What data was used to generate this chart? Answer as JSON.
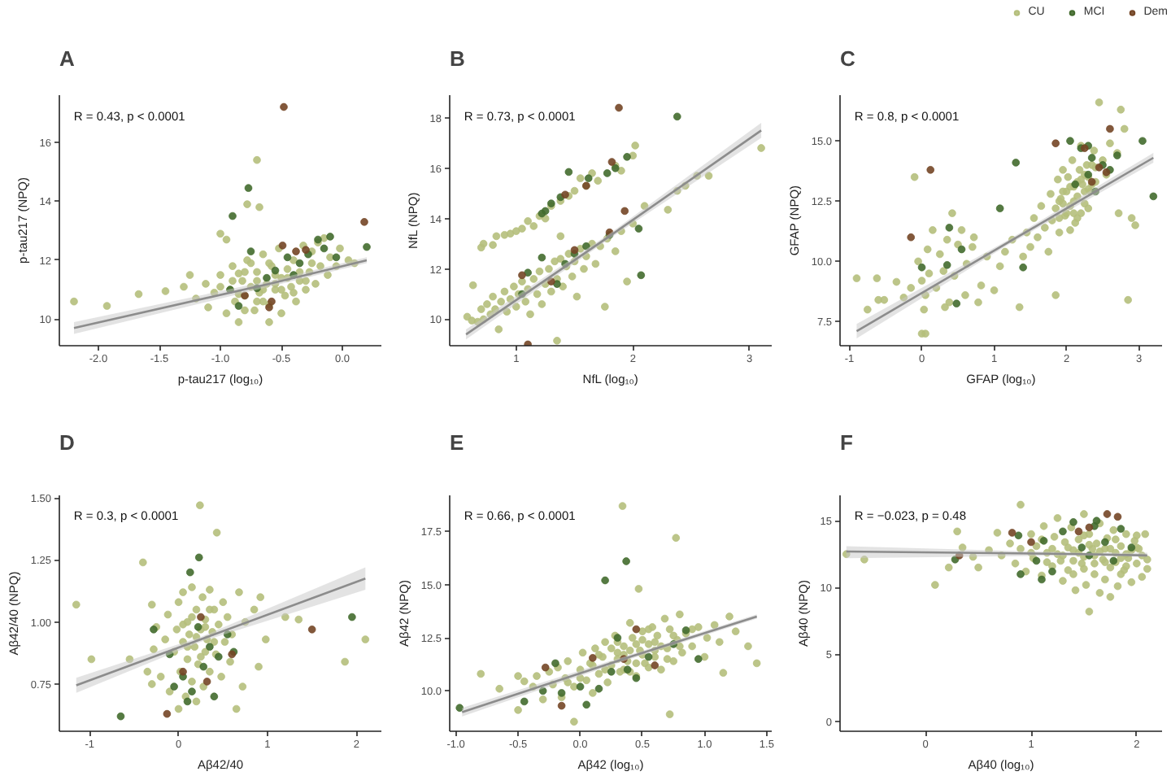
{
  "chart_data": [
    {
      "type": "scatter",
      "title": "A",
      "xlabel": "p-tau217 (log₁₀)",
      "ylabel": "p-tau217 (NPQ)",
      "annotations": [
        "R = 0.43, p < 0.0001"
      ],
      "xlim": [
        -2.32,
        0.32
      ],
      "ylim": [
        9.1,
        17.6
      ],
      "xticks": [
        {
          "value": -2,
          "label": "-2.0"
        },
        -1.5,
        {
          "value": -1,
          "label": "-1.0"
        },
        -0.5,
        {
          "value": 0,
          "label": "0.0"
        }
      ],
      "yticks": [
        10,
        12,
        14,
        16
      ],
      "grid": false,
      "marker": "circle",
      "series": [
        {
          "color": "#b5bf7c",
          "x": [
            -2.2,
            -1.93,
            -1.67,
            -1.45,
            -1.3,
            -1.25,
            -1.2,
            -1.12,
            -1.1,
            -1.05,
            -1.0,
            -1.0,
            -0.95,
            -0.92,
            -0.9,
            -0.88,
            -0.85,
            -0.82,
            -0.8,
            -0.78,
            -0.78,
            -0.75,
            -0.72,
            -0.7,
            -0.68,
            -0.7,
            -0.68,
            -0.65,
            -0.62,
            -0.6,
            -0.58,
            -0.55,
            -0.52,
            -0.5,
            -0.5,
            -0.47,
            -0.45,
            -0.42,
            -0.4,
            -0.38,
            -0.35,
            -0.32,
            -0.3,
            -0.27,
            -0.25,
            -0.22,
            -0.2,
            -0.18,
            -0.15,
            -0.12,
            -0.1,
            -0.05,
            -0.02,
            0.05,
            0.1,
            -0.6,
            -0.95,
            -0.85,
            -0.75,
            -0.65,
            -0.55,
            -0.8,
            -0.9,
            -0.8,
            -0.7,
            -0.65,
            -0.6,
            -0.55,
            -0.5,
            -0.45,
            -0.4,
            -0.35,
            -0.3,
            -0.25,
            -0.7,
            -1.0,
            -0.85
          ],
          "values": [
            10.6,
            10.45,
            10.85,
            10.95,
            11.1,
            11.5,
            10.7,
            11.2,
            10.4,
            10.9,
            11.5,
            12.9,
            10.2,
            11.0,
            11.8,
            10.6,
            9.9,
            11.3,
            10.8,
            13.9,
            12.0,
            11.1,
            10.3,
            15.4,
            13.8,
            11.6,
            10.9,
            12.2,
            11.2,
            10.5,
            11.8,
            11.0,
            12.4,
            11.4,
            10.2,
            10.8,
            11.7,
            11.1,
            12.0,
            10.6,
            11.3,
            12.5,
            11.0,
            11.6,
            12.3,
            11.2,
            12.6,
            11.8,
            12.75,
            11.5,
            12.1,
            11.8,
            12.4,
            12.0,
            11.9,
            9.9,
            12.7,
            11.55,
            11.9,
            10.6,
            11.5,
            10.3,
            11.3,
            11.6,
            11.3,
            11.0,
            11.9,
            11.2,
            11.0,
            11.4,
            10.9,
            11.6,
            11.3,
            11.9,
            10.6,
            11.1,
            10.85
          ]
        },
        {
          "color": "#436b2e",
          "x": [
            -0.77,
            -0.9,
            -0.92,
            -0.85,
            -0.75,
            -0.62,
            -0.45,
            -0.35,
            -0.28,
            -0.2,
            -0.15,
            -0.1,
            -0.05,
            0.2,
            -0.55,
            -0.7,
            -0.4
          ],
          "values": [
            14.45,
            13.5,
            11.0,
            10.45,
            12.3,
            11.4,
            12.1,
            11.9,
            12.2,
            12.7,
            12.4,
            12.8,
            12.1,
            12.45,
            11.65,
            11.05,
            11.5
          ]
        },
        {
          "color": "#744626",
          "x": [
            -0.48,
            0.18,
            -0.49,
            -0.38,
            -0.8,
            -0.6,
            -0.3,
            -0.58
          ],
          "values": [
            17.2,
            13.3,
            12.5,
            12.3,
            10.8,
            10.4,
            12.35,
            10.6
          ]
        },
        {
          "type": "line",
          "color": "#8c8c8c",
          "marker": "none",
          "x": [
            -2.2,
            -0.6,
            0.2
          ],
          "values": [
            9.7,
            11.2,
            12.0
          ],
          "lower": [
            9.5,
            11.1,
            11.9
          ],
          "upper": [
            9.9,
            11.3,
            12.1
          ]
        }
      ]
    },
    {
      "type": "scatter",
      "title": "B",
      "xlabel": "NfL (log₁₀)",
      "ylabel": "NfL (NPQ)",
      "annotations": [
        "R = 0.73, p < 0.0001"
      ],
      "xlim": [
        0.43,
        3.19
      ],
      "ylim": [
        8.95,
        18.9
      ],
      "xticks": [
        1,
        2,
        3
      ],
      "yticks": [
        10,
        12,
        14,
        16,
        18
      ],
      "grid": false,
      "marker": "circle",
      "series": [
        {
          "color": "#b5bf7c",
          "x": [
            0.58,
            0.62,
            0.63,
            0.67,
            0.7,
            0.72,
            0.75,
            0.78,
            0.8,
            0.82,
            0.85,
            0.87,
            0.9,
            0.92,
            0.95,
            0.98,
            1.0,
            1.02,
            1.05,
            1.08,
            1.1,
            1.12,
            1.15,
            1.18,
            1.2,
            1.22,
            1.25,
            1.28,
            1.3,
            1.33,
            1.35,
            1.35,
            1.38,
            1.4,
            1.43,
            1.45,
            1.48,
            1.5,
            1.52,
            1.55,
            1.58,
            1.6,
            1.65,
            1.68,
            1.72,
            1.76,
            1.78,
            1.85,
            1.9,
            1.95,
            2.0,
            2.1,
            2.3,
            2.38,
            2.45,
            2.55,
            2.65,
            3.1,
            0.7,
            0.72,
            0.8,
            0.83,
            0.9,
            0.95,
            1.0,
            1.05,
            1.1,
            1.15,
            1.2,
            1.25,
            1.3,
            1.38,
            1.45,
            1.5,
            1.55,
            1.6,
            1.65,
            1.7,
            1.85,
            1.9,
            2.0,
            2.02,
            1.38
          ],
          "values": [
            10.1,
            9.95,
            11.35,
            9.9,
            10.4,
            10.0,
            10.6,
            10.2,
            10.9,
            10.4,
            9.6,
            10.7,
            11.1,
            10.3,
            10.8,
            11.3,
            10.5,
            11.0,
            11.5,
            10.7,
            11.2,
            10.2,
            11.6,
            11.0,
            11.9,
            10.6,
            11.4,
            12.0,
            11.1,
            12.3,
            9.15,
            11.6,
            12.4,
            11.3,
            12.1,
            12.6,
            11.7,
            12.3,
            10.9,
            12.8,
            12.0,
            12.5,
            13.0,
            12.2,
            12.9,
            10.5,
            13.2,
            12.7,
            13.5,
            11.5,
            13.8,
            14.5,
            14.35,
            15.1,
            15.3,
            15.7,
            15.7,
            16.8,
            12.85,
            13.0,
            12.95,
            13.3,
            13.35,
            13.4,
            13.5,
            13.6,
            13.9,
            13.7,
            14.1,
            14.0,
            14.5,
            14.7,
            14.9,
            15.1,
            15.6,
            15.3,
            15.8,
            15.5,
            16.1,
            15.9,
            16.5,
            16.9,
            13.3
          ]
        },
        {
          "color": "#436b2e",
          "x": [
            2.38,
            2.07,
            2.05,
            1.45,
            1.62,
            1.78,
            1.85,
            1.95,
            1.38,
            1.25,
            1.22,
            1.3,
            1.22,
            1.1,
            1.35,
            1.5,
            1.6,
            1.8,
            1.05,
            1.42
          ],
          "values": [
            18.05,
            11.75,
            13.6,
            15.85,
            15.6,
            15.8,
            16.0,
            16.45,
            14.85,
            14.3,
            14.2,
            14.6,
            12.45,
            11.85,
            11.4,
            12.6,
            12.9,
            13.35,
            11.0,
            12.2
          ]
        },
        {
          "color": "#744626",
          "x": [
            1.88,
            1.1,
            1.93,
            1.82,
            1.6,
            1.42,
            1.05,
            1.8,
            1.5,
            1.3
          ],
          "values": [
            18.4,
            9.0,
            14.3,
            16.25,
            15.3,
            14.95,
            11.75,
            13.45,
            12.75,
            11.5
          ]
        },
        {
          "type": "line",
          "color": "#8c8c8c",
          "marker": "none",
          "x": [
            0.57,
            1.8,
            3.1
          ],
          "values": [
            9.4,
            13.3,
            17.5
          ],
          "lower": [
            9.2,
            13.2,
            17.2
          ],
          "upper": [
            9.6,
            13.4,
            17.8
          ]
        }
      ]
    },
    {
      "type": "scatter",
      "title": "C",
      "xlabel": "GFAP (log₁₀)",
      "ylabel": "GFAP (NPQ)",
      "annotations": [
        "R = 0.8, p < 0.0001"
      ],
      "xlim": [
        -1.13,
        3.32
      ],
      "ylim": [
        6.5,
        16.9
      ],
      "xticks": [
        -1,
        0,
        1,
        2,
        3
      ],
      "yticks": [
        7.5,
        {
          "value": 10,
          "label": "10.0"
        },
        12.5,
        {
          "value": 15,
          "label": "15.0"
        }
      ],
      "grid": false,
      "marker": "circle",
      "legend": "top right",
      "series": [
        {
          "name": "CU",
          "color": "#b5bf7c",
          "x": [
            -0.9,
            -0.75,
            -0.62,
            -0.6,
            -0.52,
            -0.35,
            -0.25,
            -0.15,
            -0.1,
            -0.05,
            0.0,
            0.0,
            0.03,
            0.05,
            0.05,
            0.08,
            0.1,
            0.15,
            0.2,
            0.25,
            0.3,
            0.32,
            0.35,
            0.38,
            0.42,
            0.45,
            0.5,
            0.55,
            0.6,
            0.62,
            0.7,
            0.72,
            0.78,
            0.82,
            0.9,
            1.0,
            1.08,
            1.15,
            1.25,
            1.35,
            1.4,
            1.45,
            1.5,
            1.55,
            1.6,
            1.65,
            1.7,
            1.75,
            1.78,
            1.8,
            1.85,
            1.85,
            1.88,
            1.9,
            1.92,
            1.95,
            1.98,
            2.0,
            2.02,
            2.05,
            2.08,
            2.1,
            2.12,
            2.15,
            2.18,
            2.2,
            2.22,
            2.25,
            2.28,
            2.3,
            2.33,
            2.38,
            2.4,
            2.45,
            2.5,
            2.55,
            2.6,
            2.7,
            2.75,
            2.8,
            2.85,
            2.9,
            2.95,
            2.72,
            2.0,
            2.1,
            2.2,
            2.3,
            1.95,
            2.15,
            2.25,
            2.35,
            2.05,
            1.9,
            1.95,
            2.05,
            2.1,
            2.2,
            2.25,
            2.3,
            2.4,
            2.15,
            1.9,
            2.35
          ],
          "values": [
            9.3,
            8.0,
            9.3,
            8.4,
            8.4,
            9.15,
            8.5,
            8.9,
            13.5,
            10.0,
            7.0,
            9.2,
            8.0,
            7.0,
            8.6,
            10.5,
            9.5,
            11.3,
            8.9,
            10.3,
            9.6,
            8.1,
            10.9,
            8.3,
            12.0,
            9.4,
            10.7,
            11.3,
            8.6,
            9.9,
            10.6,
            11.0,
            8.3,
            9.0,
            10.2,
            8.8,
            9.8,
            10.4,
            10.9,
            8.1,
            10.2,
            11.2,
            10.6,
            11.8,
            11.0,
            12.3,
            11.4,
            10.4,
            12.8,
            11.7,
            8.6,
            12.2,
            13.4,
            11.2,
            12.6,
            13.8,
            11.9,
            12.9,
            13.5,
            12.3,
            14.2,
            13.1,
            11.6,
            12.7,
            13.8,
            14.8,
            13.2,
            12.4,
            14.0,
            13.5,
            12.9,
            14.6,
            13.9,
            16.6,
            14.2,
            13.6,
            14.9,
            14.5,
            16.3,
            15.5,
            8.4,
            11.8,
            11.5,
            12.0,
            12.0,
            12.5,
            12.0,
            13.0,
            12.4,
            13.3,
            13.6,
            13.2,
            11.3,
            11.8,
            12.9,
            13.1,
            12.0,
            13.4,
            12.9,
            12.2,
            13.3,
            11.8,
            12.5,
            14.0
          ]
        },
        {
          "name": "MCI",
          "color": "#436b2e",
          "x": [
            0.0,
            0.38,
            0.35,
            0.55,
            0.48,
            1.08,
            1.3,
            1.4,
            2.05,
            2.2,
            2.3,
            2.35,
            2.4,
            2.5,
            2.6,
            2.7,
            3.05,
            3.2,
            2.3,
            2.12
          ],
          "values": [
            9.75,
            11.4,
            9.85,
            10.5,
            8.25,
            12.2,
            14.1,
            9.75,
            15.0,
            14.7,
            13.6,
            14.3,
            12.9,
            14.0,
            13.8,
            14.4,
            15.0,
            12.7,
            14.8,
            13.2
          ]
        },
        {
          "name": "Dem",
          "color": "#744626",
          "x": [
            0.12,
            -0.15,
            1.85,
            2.6,
            2.25,
            2.55,
            2.45,
            2.35
          ],
          "values": [
            13.8,
            11.0,
            14.9,
            15.5,
            14.7,
            13.7,
            13.9,
            13.3
          ]
        },
        {
          "type": "line",
          "color": "#8c8c8c",
          "marker": "none",
          "x": [
            -0.9,
            1.2,
            3.2
          ],
          "values": [
            7.1,
            10.8,
            14.3
          ],
          "lower": [
            6.8,
            10.7,
            14.1
          ],
          "upper": [
            7.4,
            10.9,
            14.5
          ]
        }
      ]
    },
    {
      "type": "scatter",
      "title": "D",
      "xlabel": "Aβ42/40",
      "ylabel": "Aβ42/40 (NPQ)",
      "annotations": [
        "R = 0.3, p < 0.0001"
      ],
      "xlim": [
        -1.34,
        2.28
      ],
      "ylim": [
        0.56,
        1.51
      ],
      "xticks": [
        -1,
        0,
        1,
        2
      ],
      "yticks": [
        0.75,
        {
          "value": 1,
          "label": "1.00"
        },
        1.25,
        {
          "value": 1.5,
          "label": "1.50"
        }
      ],
      "grid": false,
      "marker": "circle",
      "series": [
        {
          "color": "#b5bf7c",
          "x": [
            -1.15,
            -0.98,
            -0.55,
            -0.4,
            -0.3,
            -0.28,
            -0.25,
            -0.2,
            -0.15,
            -0.12,
            -0.1,
            -0.05,
            -0.02,
            0.0,
            0.0,
            0.02,
            0.05,
            0.05,
            0.08,
            0.1,
            0.1,
            0.12,
            0.15,
            0.15,
            0.18,
            0.2,
            0.2,
            0.22,
            0.24,
            0.25,
            0.27,
            0.28,
            0.3,
            0.3,
            0.32,
            0.35,
            0.35,
            0.38,
            0.4,
            0.42,
            0.43,
            0.45,
            0.48,
            0.5,
            0.52,
            0.55,
            0.58,
            0.6,
            0.65,
            0.68,
            0.72,
            0.75,
            0.85,
            0.9,
            0.92,
            0.98,
            1.2,
            1.35,
            1.87,
            2.1,
            -0.3,
            -0.35,
            0.2,
            0.3,
            0.1,
            0.4,
            0.25,
            0.15,
            0.35,
            0.05
          ],
          "values": [
            1.07,
            0.85,
            0.85,
            1.24,
            1.07,
            0.89,
            0.98,
            0.78,
            0.93,
            1.03,
            0.72,
            0.88,
            0.97,
            0.65,
            1.08,
            0.8,
            0.92,
            1.12,
            0.7,
            0.85,
            1.0,
            0.95,
            0.76,
            1.14,
            0.9,
            1.05,
            0.68,
            0.83,
            1.47,
            0.97,
            1.1,
            0.74,
            0.88,
            1.01,
            0.93,
            1.13,
            0.8,
            0.96,
            1.05,
            0.87,
            1.36,
            0.99,
            0.78,
            1.08,
            0.92,
            1.02,
            0.84,
            0.95,
            0.65,
            1.12,
            0.74,
            1.0,
            1.05,
            0.82,
            1.1,
            0.93,
            1.02,
            1.01,
            0.84,
            0.93,
            0.75,
            0.8,
            0.94,
            0.98,
            0.9,
            0.92,
            0.86,
            1.02,
            1.05,
            0.99
          ]
        },
        {
          "color": "#436b2e",
          "x": [
            -0.65,
            0.23,
            0.13,
            1.95,
            -0.28,
            -0.1,
            -0.05,
            0.05,
            0.1,
            0.22,
            0.28,
            0.35,
            0.4,
            0.45,
            0.55,
            0.62,
            0.15
          ],
          "values": [
            0.62,
            1.26,
            1.2,
            1.02,
            0.97,
            0.87,
            0.74,
            0.78,
            0.68,
            0.98,
            0.82,
            0.9,
            0.7,
            0.86,
            0.95,
            0.88,
            0.72
          ]
        },
        {
          "color": "#744626",
          "x": [
            -0.13,
            1.5,
            0.25,
            0.05,
            0.6,
            0.32
          ],
          "values": [
            0.63,
            0.97,
            1.02,
            0.8,
            0.87,
            0.76
          ]
        },
        {
          "type": "line",
          "color": "#8c8c8c",
          "marker": "none",
          "x": [
            -1.15,
            0.25,
            2.1
          ],
          "values": [
            0.745,
            0.93,
            1.175
          ],
          "lower": [
            0.715,
            0.92,
            1.13
          ],
          "upper": [
            0.775,
            0.94,
            1.22
          ]
        }
      ]
    },
    {
      "type": "scatter",
      "title": "E",
      "xlabel": "Aβ42 (log₁₀)",
      "ylabel": "Aβ42 (NPQ)",
      "annotations": [
        "R = 0.66, p < 0.0001"
      ],
      "xlim": [
        -1.05,
        1.54
      ],
      "ylim": [
        8.1,
        19.2
      ],
      "xticks": [
        {
          "value": -1,
          "label": "-1.0"
        },
        -0.5,
        {
          "value": 0,
          "label": "0.0"
        },
        0.5,
        {
          "value": 1,
          "label": "1.0"
        },
        1.5
      ],
      "yticks": [
        {
          "value": 10,
          "label": "10.0"
        },
        12.5,
        {
          "value": 15,
          "label": "15.0"
        },
        17.5
      ],
      "grid": false,
      "marker": "circle",
      "series": [
        {
          "color": "#b5bf7c",
          "x": [
            -0.8,
            -0.65,
            -0.5,
            -0.5,
            -0.45,
            -0.38,
            -0.35,
            -0.3,
            -0.25,
            -0.22,
            -0.18,
            -0.15,
            -0.12,
            -0.1,
            -0.05,
            -0.05,
            0.0,
            0.02,
            0.05,
            0.08,
            0.1,
            0.12,
            0.15,
            0.18,
            0.2,
            0.22,
            0.25,
            0.28,
            0.3,
            0.32,
            0.34,
            0.35,
            0.38,
            0.4,
            0.42,
            0.45,
            0.47,
            0.48,
            0.5,
            0.52,
            0.55,
            0.58,
            0.6,
            0.62,
            0.65,
            0.68,
            0.7,
            0.72,
            0.72,
            0.75,
            0.77,
            0.78,
            0.8,
            0.82,
            0.85,
            0.9,
            0.95,
            1.0,
            1.02,
            1.08,
            1.12,
            1.15,
            1.2,
            1.25,
            1.35,
            1.42,
            0.3,
            0.4,
            0.5,
            0.6,
            0.25,
            0.45,
            0.55,
            0.35,
            0.65,
            0.15,
            0.1,
            0.2,
            0.3,
            0.35,
            0.45,
            0.5,
            0.55,
            0.6,
            0.7,
            0.75,
            0.8,
            0.9,
            0.4,
            0.0,
            -0.1
          ],
          "values": [
            10.8,
            10.1,
            9.1,
            10.7,
            10.45,
            10.2,
            10.7,
            9.6,
            10.9,
            10.3,
            11.1,
            9.7,
            10.6,
            11.4,
            8.55,
            10.2,
            11.0,
            11.8,
            10.5,
            11.3,
            9.9,
            12.0,
            10.8,
            11.6,
            12.3,
            10.4,
            11.2,
            12.6,
            11.8,
            10.9,
            18.7,
            12.1,
            11.4,
            13.2,
            12.5,
            10.7,
            14.8,
            11.9,
            12.8,
            11.3,
            12.2,
            13.0,
            11.6,
            12.6,
            11.0,
            13.4,
            12.0,
            8.9,
            12.9,
            11.4,
            17.2,
            12.4,
            13.6,
            11.8,
            12.7,
            12.1,
            13.0,
            11.6,
            12.5,
            13.1,
            12.3,
            10.85,
            13.5,
            12.8,
            12.1,
            11.3,
            11.5,
            11.9,
            11.7,
            12.3,
            12.0,
            12.2,
            11.1,
            11.0,
            12.1,
            11.7,
            11.2,
            11.0,
            12.3,
            11.7,
            11.3,
            12.4,
            12.9,
            11.9,
            11.5,
            12.6,
            12.1,
            12.9,
            10.9,
            10.6,
            10.4
          ]
        },
        {
          "color": "#436b2e",
          "x": [
            -0.97,
            0.37,
            0.2,
            -0.45,
            -0.3,
            -0.15,
            -0.2,
            0.0,
            0.05,
            0.15,
            0.25,
            0.3,
            0.38,
            0.45,
            0.55,
            0.75,
            0.95,
            0.85
          ],
          "values": [
            9.2,
            16.1,
            15.2,
            9.5,
            10.0,
            9.9,
            11.3,
            10.2,
            9.35,
            10.1,
            10.9,
            12.5,
            11.0,
            10.6,
            11.6,
            12.2,
            11.5,
            12.85
          ]
        },
        {
          "color": "#744626",
          "x": [
            -0.28,
            0.35,
            0.45,
            -0.15,
            0.6,
            0.1
          ],
          "values": [
            11.1,
            11.5,
            12.9,
            9.3,
            11.2,
            11.55
          ]
        },
        {
          "type": "line",
          "color": "#8c8c8c",
          "marker": "none",
          "x": [
            -0.95,
            0.4,
            1.42
          ],
          "values": [
            9.0,
            11.6,
            13.5
          ],
          "lower": [
            8.8,
            11.5,
            13.4
          ],
          "upper": [
            9.2,
            11.7,
            13.6
          ]
        }
      ]
    },
    {
      "type": "scatter",
      "title": "F",
      "xlabel": "Aβ40 (log₁₀)",
      "ylabel": "Aβ40 (NPQ)",
      "annotations": [
        "R = −0.023, p = 0.48"
      ],
      "xlim": [
        -0.81,
        2.24
      ],
      "ylim": [
        -0.76,
        16.9
      ],
      "xticks": [
        0,
        1,
        2
      ],
      "yticks": [
        0,
        5,
        10,
        15
      ],
      "grid": false,
      "marker": "circle",
      "series": [
        {
          "color": "#b5bf7c",
          "x": [
            -0.75,
            -0.58,
            0.09,
            0.3,
            0.22,
            0.35,
            0.45,
            0.5,
            0.6,
            0.68,
            0.72,
            0.8,
            0.85,
            0.9,
            0.9,
            0.95,
            1.0,
            1.02,
            1.05,
            1.1,
            1.12,
            1.15,
            1.2,
            1.22,
            1.25,
            1.28,
            1.3,
            1.32,
            1.35,
            1.38,
            1.4,
            1.42,
            1.45,
            1.48,
            1.5,
            1.5,
            1.52,
            1.55,
            1.55,
            1.58,
            1.6,
            1.62,
            1.65,
            1.65,
            1.68,
            1.7,
            1.72,
            1.75,
            1.75,
            1.78,
            1.8,
            1.82,
            1.85,
            1.88,
            1.9,
            1.92,
            1.95,
            1.98,
            2.0,
            2.02,
            2.05,
            2.08,
            2.1,
            1.4,
            1.6,
            1.7,
            1.8,
            1.9,
            1.5,
            1.3,
            2.0,
            1.2,
            1.85,
            1.0,
            1.1,
            1.15,
            1.25,
            1.35,
            1.45,
            1.55,
            1.6,
            1.65,
            1.7,
            1.75,
            1.8,
            1.85,
            1.9,
            1.95,
            2.0,
            2.05,
            2.1,
            1.4,
            1.5
          ],
          "values": [
            12.5,
            12.1,
            10.2,
            14.2,
            11.5,
            13.0,
            12.3,
            11.5,
            12.8,
            14.1,
            12.4,
            13.3,
            11.8,
            16.2,
            12.9,
            11.2,
            14.0,
            12.2,
            13.1,
            10.9,
            14.6,
            12.6,
            11.6,
            13.8,
            15.2,
            12.0,
            10.5,
            13.4,
            11.3,
            14.5,
            12.8,
            9.8,
            13.6,
            11.8,
            15.5,
            12.3,
            10.2,
            8.2,
            14.0,
            12.9,
            11.0,
            13.3,
            9.6,
            14.8,
            12.1,
            10.6,
            13.7,
            11.5,
            9.3,
            14.3,
            12.6,
            10.1,
            13.1,
            11.3,
            14.0,
            12.2,
            10.4,
            13.5,
            11.8,
            12.9,
            10.8,
            14.0,
            12.1,
            12.0,
            12.4,
            12.9,
            11.9,
            12.5,
            11.4,
            12.4,
            13.0,
            12.9,
            11.0,
            12.6,
            13.6,
            11.9,
            12.5,
            13.0,
            12.6,
            13.2,
            11.8,
            12.7,
            11.9,
            12.9,
            13.6,
            12.2,
            11.6,
            12.8,
            13.9,
            12.4,
            11.4,
            11.0,
            13.9
          ]
        },
        {
          "color": "#436b2e",
          "x": [
            0.28,
            0.88,
            0.9,
            1.05,
            1.12,
            1.2,
            1.3,
            1.4,
            1.48,
            1.55,
            1.6,
            1.7,
            1.78,
            1.85,
            1.95,
            1.62,
            1.1
          ],
          "values": [
            12.1,
            13.9,
            11.0,
            12.0,
            13.5,
            11.2,
            14.2,
            14.9,
            13.0,
            12.4,
            14.6,
            13.4,
            12.0,
            14.4,
            13.0,
            15.0,
            10.6
          ]
        },
        {
          "color": "#744626",
          "x": [
            0.32,
            0.82,
            1.45,
            1.72,
            1.82,
            1.55,
            1.0
          ],
          "values": [
            12.4,
            14.1,
            14.2,
            15.5,
            15.3,
            14.5,
            13.4
          ]
        },
        {
          "type": "line",
          "color": "#8c8c8c",
          "marker": "none",
          "x": [
            -0.75,
            1.5,
            2.1
          ],
          "values": [
            12.7,
            12.5,
            12.4
          ],
          "lower": [
            12.2,
            12.4,
            12.3
          ],
          "upper": [
            13.1,
            12.6,
            12.6
          ]
        }
      ]
    }
  ]
}
